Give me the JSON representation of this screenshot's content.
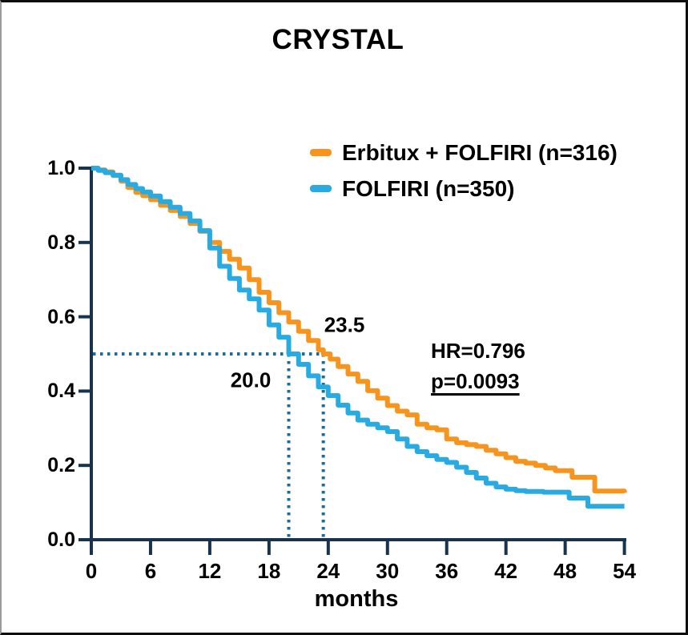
{
  "title": "CRYSTAL",
  "legend": {
    "items": [
      {
        "label": "Erbitux + FOLFIRI (n=316)",
        "color": "#F7941E"
      },
      {
        "label": "FOLFIRI (n=350)",
        "color": "#29ABE2"
      }
    ]
  },
  "annotations": {
    "median_erbitux": "23.5",
    "median_folfiri": "20.0",
    "hazard_ratio": "HR=0.796",
    "p_value": "p=0.0093"
  },
  "axes": {
    "x_label": "months",
    "x_tick_labels": [
      "0",
      "6",
      "12",
      "18",
      "24",
      "30",
      "36",
      "42",
      "48",
      "54"
    ],
    "y_tick_labels": [
      "1.0",
      "0.8",
      "0.6",
      "0.4",
      "0.2",
      "0.0"
    ]
  },
  "colors": {
    "erbitux_orange": "#F7941E",
    "folfiri_blue": "#29ABE2",
    "axis_navy": "#17334D",
    "median_guide_teal": "#1D6B99",
    "text_black": "#000000",
    "background": "#FFFFFF"
  },
  "chart_data": {
    "type": "line",
    "subtype": "kaplan-meier-step",
    "title": "CRYSTAL",
    "xlabel": "months",
    "ylabel": "",
    "xlim": [
      0,
      54
    ],
    "ylim": [
      0.0,
      1.0
    ],
    "x_ticks": [
      0,
      6,
      12,
      18,
      24,
      30,
      36,
      42,
      48,
      54
    ],
    "y_ticks": [
      1.0,
      0.8,
      0.6,
      0.4,
      0.2,
      0.0
    ],
    "grid": false,
    "legend_position": "top-right-inside",
    "median_guides": {
      "survival_level": 0.5,
      "x_values": [
        20.0,
        23.5
      ]
    },
    "stats": {
      "hazard_ratio": 0.796,
      "p_value": 0.0093
    },
    "series": [
      {
        "name": "Erbitux + FOLFIRI (n=316)",
        "color": "#F7941E",
        "median_months": 23.5,
        "points": [
          [
            0,
            1.0
          ],
          [
            0.7,
            0.995
          ],
          [
            1.4,
            0.99
          ],
          [
            2.2,
            0.98
          ],
          [
            3,
            0.965
          ],
          [
            3.7,
            0.948
          ],
          [
            4.5,
            0.935
          ],
          [
            5.2,
            0.926
          ],
          [
            6,
            0.915
          ],
          [
            7,
            0.9
          ],
          [
            8,
            0.886
          ],
          [
            9,
            0.87
          ],
          [
            10,
            0.851
          ],
          [
            11,
            0.83
          ],
          [
            12,
            0.8
          ],
          [
            13,
            0.776
          ],
          [
            14,
            0.755
          ],
          [
            15,
            0.731
          ],
          [
            16,
            0.7
          ],
          [
            17,
            0.666
          ],
          [
            18,
            0.638
          ],
          [
            19,
            0.611
          ],
          [
            20,
            0.586
          ],
          [
            21,
            0.561
          ],
          [
            22,
            0.536
          ],
          [
            23,
            0.511
          ],
          [
            23.5,
            0.5
          ],
          [
            24.2,
            0.486
          ],
          [
            25,
            0.466
          ],
          [
            26,
            0.446
          ],
          [
            27,
            0.426
          ],
          [
            28,
            0.401
          ],
          [
            29,
            0.381
          ],
          [
            30,
            0.361
          ],
          [
            31,
            0.346
          ],
          [
            32,
            0.336
          ],
          [
            33,
            0.311
          ],
          [
            34,
            0.301
          ],
          [
            35,
            0.296
          ],
          [
            36,
            0.271
          ],
          [
            37,
            0.261
          ],
          [
            38,
            0.256
          ],
          [
            39,
            0.251
          ],
          [
            40,
            0.241
          ],
          [
            41,
            0.231
          ],
          [
            42,
            0.221
          ],
          [
            43,
            0.211
          ],
          [
            44,
            0.206
          ],
          [
            45,
            0.2
          ],
          [
            46,
            0.193
          ],
          [
            47,
            0.186
          ],
          [
            48.7,
            0.168
          ],
          [
            51,
            0.131
          ],
          [
            54,
            0.126
          ]
        ]
      },
      {
        "name": "FOLFIRI (n=350)",
        "color": "#29ABE2",
        "median_months": 20.0,
        "points": [
          [
            0,
            1.0
          ],
          [
            0.7,
            0.994
          ],
          [
            1.4,
            0.988
          ],
          [
            2.2,
            0.981
          ],
          [
            3,
            0.969
          ],
          [
            3.7,
            0.956
          ],
          [
            4.5,
            0.945
          ],
          [
            5.2,
            0.936
          ],
          [
            6,
            0.925
          ],
          [
            7,
            0.91
          ],
          [
            8,
            0.895
          ],
          [
            9,
            0.878
          ],
          [
            10,
            0.858
          ],
          [
            11,
            0.832
          ],
          [
            12,
            0.785
          ],
          [
            13,
            0.736
          ],
          [
            14,
            0.703
          ],
          [
            15,
            0.672
          ],
          [
            16,
            0.648
          ],
          [
            17,
            0.618
          ],
          [
            18,
            0.578
          ],
          [
            19,
            0.545
          ],
          [
            20,
            0.5
          ],
          [
            21,
            0.472
          ],
          [
            22,
            0.441
          ],
          [
            23,
            0.411
          ],
          [
            24,
            0.388
          ],
          [
            25,
            0.362
          ],
          [
            26,
            0.341
          ],
          [
            27,
            0.322
          ],
          [
            28,
            0.311
          ],
          [
            29,
            0.301
          ],
          [
            30,
            0.291
          ],
          [
            31,
            0.271
          ],
          [
            32,
            0.251
          ],
          [
            33,
            0.237
          ],
          [
            34,
            0.226
          ],
          [
            35,
            0.216
          ],
          [
            36,
            0.208
          ],
          [
            37,
            0.195
          ],
          [
            38,
            0.181
          ],
          [
            39,
            0.166
          ],
          [
            40,
            0.152
          ],
          [
            41,
            0.142
          ],
          [
            42,
            0.136
          ],
          [
            43,
            0.132
          ],
          [
            44,
            0.13
          ],
          [
            45.8,
            0.128
          ],
          [
            48.4,
            0.112
          ],
          [
            50.3,
            0.09
          ],
          [
            54,
            0.09
          ]
        ]
      }
    ]
  }
}
